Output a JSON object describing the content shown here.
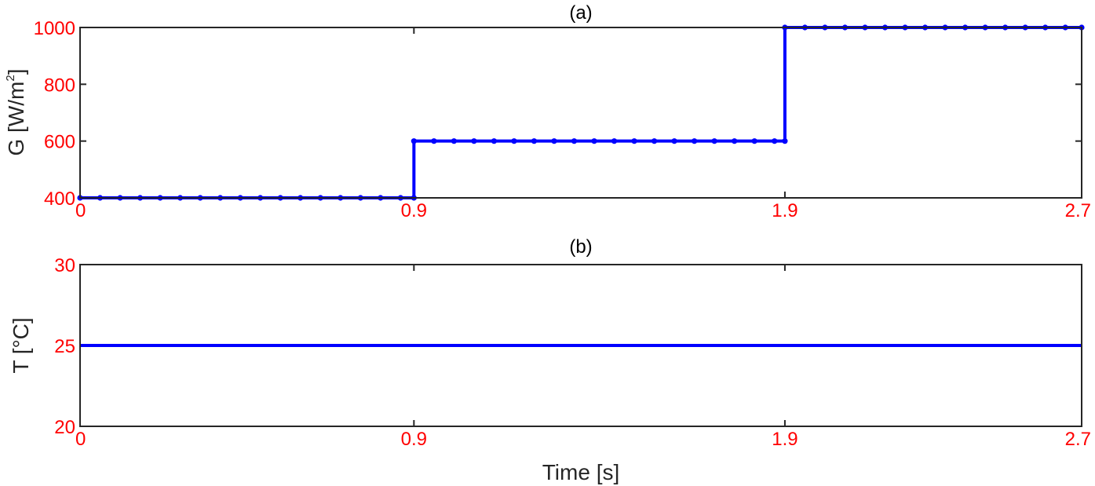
{
  "figure": {
    "xlabel": "Time [s]",
    "tick_color": "#ff0000",
    "line_color": "#0000ff",
    "axis_color": "#262626"
  },
  "chart_data": [
    {
      "type": "line",
      "title": "(a)",
      "ylabel_main": "G [W/m",
      "ylabel_sup": "2",
      "ylabel_end": "]",
      "xlim": [
        0,
        2.7
      ],
      "ylim": [
        400,
        1000
      ],
      "xticks": [
        0,
        0.9,
        1.9,
        2.7
      ],
      "xtick_labels": [
        "0",
        "0.9",
        "1.9",
        "2.7"
      ],
      "yticks": [
        400,
        600,
        800,
        1000
      ],
      "ytick_labels": [
        "400",
        "600",
        "800",
        "1000"
      ],
      "grid": false,
      "series": [
        {
          "marker": "dot",
          "step_points": [
            [
              0,
              400
            ],
            [
              0.9,
              400
            ],
            [
              0.9,
              600
            ],
            [
              1.9,
              600
            ],
            [
              1.9,
              1000
            ],
            [
              2.7,
              1000
            ]
          ],
          "marker_points": [
            [
              0.0,
              400
            ],
            [
              0.054,
              400
            ],
            [
              0.108,
              400
            ],
            [
              0.162,
              400
            ],
            [
              0.216,
              400
            ],
            [
              0.27,
              400
            ],
            [
              0.324,
              400
            ],
            [
              0.378,
              400
            ],
            [
              0.432,
              400
            ],
            [
              0.486,
              400
            ],
            [
              0.54,
              400
            ],
            [
              0.594,
              400
            ],
            [
              0.648,
              400
            ],
            [
              0.702,
              400
            ],
            [
              0.756,
              400
            ],
            [
              0.81,
              400
            ],
            [
              0.864,
              400
            ],
            [
              0.9,
              400
            ],
            [
              0.9,
              600
            ],
            [
              0.954,
              600
            ],
            [
              1.008,
              600
            ],
            [
              1.062,
              600
            ],
            [
              1.116,
              600
            ],
            [
              1.17,
              600
            ],
            [
              1.224,
              600
            ],
            [
              1.278,
              600
            ],
            [
              1.332,
              600
            ],
            [
              1.386,
              600
            ],
            [
              1.44,
              600
            ],
            [
              1.494,
              600
            ],
            [
              1.548,
              600
            ],
            [
              1.602,
              600
            ],
            [
              1.656,
              600
            ],
            [
              1.71,
              600
            ],
            [
              1.764,
              600
            ],
            [
              1.818,
              600
            ],
            [
              1.872,
              600
            ],
            [
              1.9,
              600
            ],
            [
              1.9,
              1000
            ],
            [
              1.954,
              1000
            ],
            [
              2.008,
              1000
            ],
            [
              2.062,
              1000
            ],
            [
              2.116,
              1000
            ],
            [
              2.17,
              1000
            ],
            [
              2.224,
              1000
            ],
            [
              2.278,
              1000
            ],
            [
              2.332,
              1000
            ],
            [
              2.386,
              1000
            ],
            [
              2.44,
              1000
            ],
            [
              2.494,
              1000
            ],
            [
              2.548,
              1000
            ],
            [
              2.602,
              1000
            ],
            [
              2.656,
              1000
            ],
            [
              2.7,
              1000
            ]
          ]
        }
      ]
    },
    {
      "type": "line",
      "title": "(b)",
      "ylabel": "T [°C]",
      "xlim": [
        0,
        2.7
      ],
      "ylim": [
        20,
        30
      ],
      "xticks": [
        0,
        0.9,
        1.9,
        2.7
      ],
      "xtick_labels": [
        "0",
        "0.9",
        "1.9",
        "2.7"
      ],
      "yticks": [
        20,
        25,
        30
      ],
      "ytick_labels": [
        "20",
        "25",
        "30"
      ],
      "grid": false,
      "series": [
        {
          "marker": "none",
          "step_points": [
            [
              0,
              25
            ],
            [
              2.7,
              25
            ]
          ]
        }
      ]
    }
  ]
}
